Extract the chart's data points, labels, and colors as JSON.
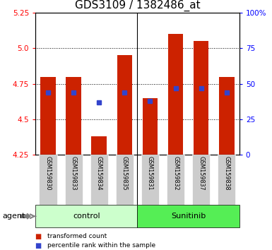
{
  "title": "GDS3109 / 1382486_at",
  "samples": [
    "GSM159830",
    "GSM159833",
    "GSM159834",
    "GSM159835",
    "GSM159831",
    "GSM159832",
    "GSM159837",
    "GSM159838"
  ],
  "groups": [
    "control",
    "control",
    "control",
    "control",
    "Sunitinib",
    "Sunitinib",
    "Sunitinib",
    "Sunitinib"
  ],
  "transformed_count": [
    4.8,
    4.8,
    4.38,
    4.95,
    4.65,
    5.1,
    5.05,
    4.8
  ],
  "percentile_rank": [
    4.69,
    4.69,
    4.62,
    4.69,
    4.63,
    4.72,
    4.72,
    4.69
  ],
  "ymin": 4.25,
  "ymax": 5.25,
  "y_ticks": [
    4.25,
    4.5,
    4.75,
    5.0,
    5.25
  ],
  "y2_ticks": [
    0,
    25,
    50,
    75,
    100
  ],
  "bar_color": "#cc2200",
  "blue_color": "#3344cc",
  "control_bg": "#ccffcc",
  "sunitinib_bg": "#55ee55",
  "xlabel_bg": "#cccccc",
  "group_label_control": "control",
  "group_label_sunitinib": "Sunitinib",
  "agent_label": "agent",
  "legend_red": "transformed count",
  "legend_blue": "percentile rank within the sample",
  "title_fontsize": 11,
  "tick_fontsize": 7.5,
  "bar_width": 0.6,
  "n_control": 4,
  "n_sunitinib": 4
}
